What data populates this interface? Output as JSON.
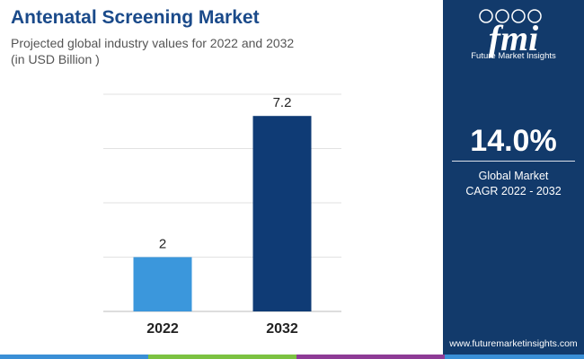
{
  "header": {
    "title": "Antenatal Screening Market",
    "subtitle": "Projected global industry values for 2022 and 2032",
    "unit": "(in USD Billion )"
  },
  "sidebar": {
    "logo_text": "fmi",
    "logo_icons": [
      "rocket-icon",
      "medical-icon",
      "analytics-icon",
      "gear-icon"
    ],
    "company_name": "Future Market Insights",
    "cagr_value": "14.0%",
    "cagr_label_line1": "Global Market",
    "cagr_label_line2": "CAGR 2022 - 2032",
    "website": "www.futuremarketinsights.com"
  },
  "colors": {
    "title": "#1a4a8a",
    "panel": "#123a6b",
    "bar_2022": "#3b97dc",
    "bar_2032": "#0f3b75",
    "stripe": [
      "#3a8fd6",
      "#7cc242",
      "#8e3b96",
      "#3a8fd6"
    ]
  },
  "chart_data": {
    "type": "bar",
    "categories": [
      "2022",
      "2032"
    ],
    "values": [
      2,
      7.2
    ],
    "data_labels": [
      "2",
      "7.2"
    ],
    "ylim": [
      0,
      8
    ],
    "grid": true,
    "legend": "none",
    "xlabel": "",
    "ylabel": ""
  }
}
